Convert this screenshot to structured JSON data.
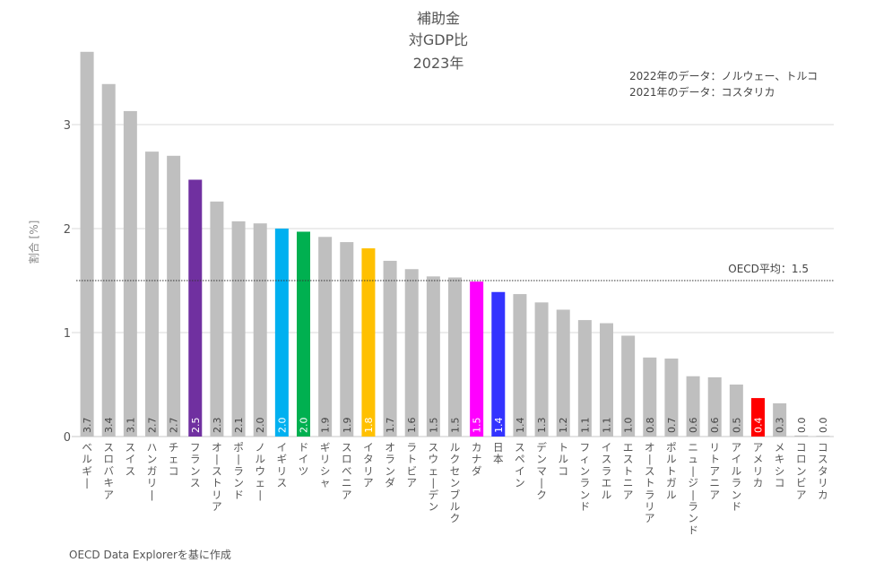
{
  "chart_data": {
    "type": "bar",
    "title": [
      "補助金",
      "対GDP比",
      "2023年"
    ],
    "notes": [
      "2022年のデータ：ノルウェー、トルコ",
      "2021年のデータ：コスタリカ"
    ],
    "ylabel": "割合 [%]",
    "xlabel": "",
    "ylim": [
      0,
      3.75
    ],
    "yticks": [
      0,
      1,
      2,
      3
    ],
    "grid": true,
    "reference_line": {
      "label": "OECD平均：1.5",
      "value": 1.5,
      "style": "dotted"
    },
    "source": "OECD Data Explorerを基に作成",
    "default_color": "#bfbfbf",
    "categories": [
      "ベルギー",
      "スロバキア",
      "スイス",
      "ハンガリー",
      "チェコ",
      "フランス",
      "オーストリア",
      "ポーランド",
      "ノルウェー",
      "イギリス",
      "ドイツ",
      "ギリシャ",
      "スロベニア",
      "イタリア",
      "オランダ",
      "ラトビア",
      "スウェーデン",
      "ルクセンブルク",
      "カナダ",
      "日本",
      "スペイン",
      "デンマーク",
      "トルコ",
      "フィンランド",
      "イスラエル",
      "エストニア",
      "オーストラリア",
      "ポルトガル",
      "ニュージーランド",
      "リトアニア",
      "アイルランド",
      "アメリカ",
      "メキシコ",
      "コロンビア",
      "コスタリカ"
    ],
    "values": [
      3.7,
      3.39,
      3.13,
      2.74,
      2.7,
      2.47,
      2.26,
      2.07,
      2.05,
      2.0,
      1.97,
      1.92,
      1.87,
      1.81,
      1.69,
      1.61,
      1.54,
      1.53,
      1.49,
      1.39,
      1.37,
      1.29,
      1.22,
      1.12,
      1.09,
      0.97,
      0.76,
      0.75,
      0.58,
      0.57,
      0.5,
      0.37,
      0.32,
      0.01,
      0.0
    ],
    "labels": [
      "3.7",
      "3.4",
      "3.1",
      "2.7",
      "2.7",
      "2.5",
      "2.3",
      "2.1",
      "2.0",
      "2.0",
      "2.0",
      "1.9",
      "1.9",
      "1.8",
      "1.7",
      "1.6",
      "1.5",
      "1.5",
      "1.5",
      "1.4",
      "1.4",
      "1.3",
      "1.2",
      "1.1",
      "1.1",
      "1.0",
      "0.8",
      "0.7",
      "0.6",
      "0.6",
      "0.5",
      "0.4",
      "0.3",
      "0.0",
      "0.0"
    ],
    "highlights": {
      "フランス": "#7030a0",
      "イギリス": "#00b0f0",
      "ドイツ": "#00b050",
      "イタリア": "#ffc000",
      "カナダ": "#ff00ff",
      "日本": "#3333ff",
      "アメリカ": "#ff0000"
    }
  }
}
